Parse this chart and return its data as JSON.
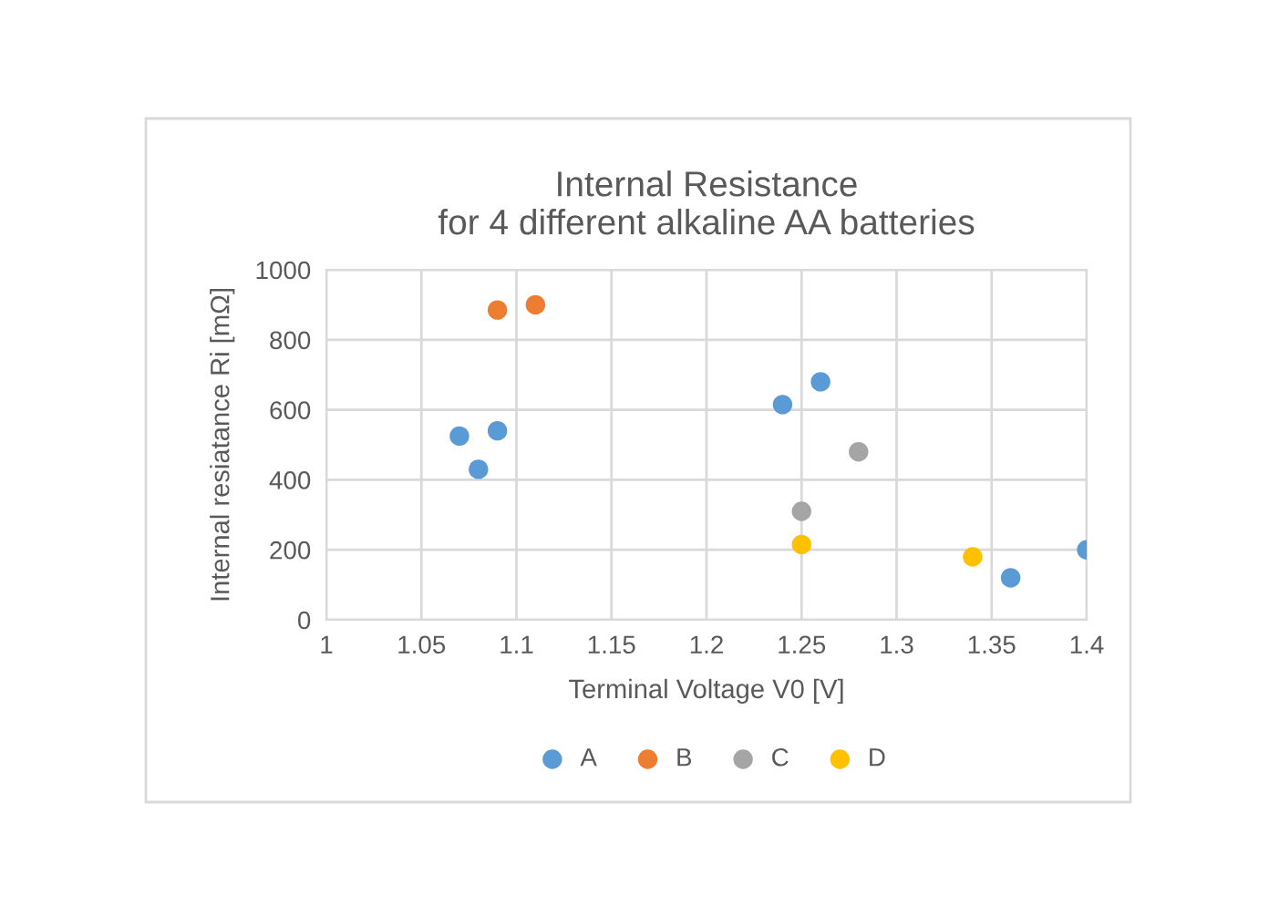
{
  "chart_data": {
    "type": "scatter",
    "title": "Internal Resistance\nfor 4 different alkaline AA batteries",
    "xlabel": "Terminal Voltage V0 [V]",
    "ylabel": "Internal resiatance Ri [mΩ]",
    "series": [
      {
        "name": "A",
        "color": "#5b9bd5",
        "x": [
          1.07,
          1.08,
          1.09,
          1.24,
          1.26,
          1.36,
          1.4
        ],
        "values": [
          525,
          430,
          540,
          615,
          680,
          120,
          200
        ]
      },
      {
        "name": "B",
        "color": "#ed7d31",
        "x": [
          1.09,
          1.11
        ],
        "values": [
          885,
          900
        ]
      },
      {
        "name": "C",
        "color": "#a5a5a5",
        "x": [
          1.25,
          1.28
        ],
        "values": [
          310,
          480
        ]
      },
      {
        "name": "D",
        "color": "#ffc000",
        "x": [
          1.25,
          1.34
        ],
        "values": [
          215,
          180
        ]
      }
    ],
    "xlim": [
      1,
      1.4
    ],
    "xticks": [
      1,
      1.05,
      1.1,
      1.15,
      1.2,
      1.25,
      1.3,
      1.35,
      1.4
    ],
    "ylim": [
      0,
      1000
    ],
    "yticks": [
      0,
      200,
      400,
      600,
      800,
      1000
    ],
    "grid": true,
    "legend": "bottom",
    "marker": "circle"
  }
}
